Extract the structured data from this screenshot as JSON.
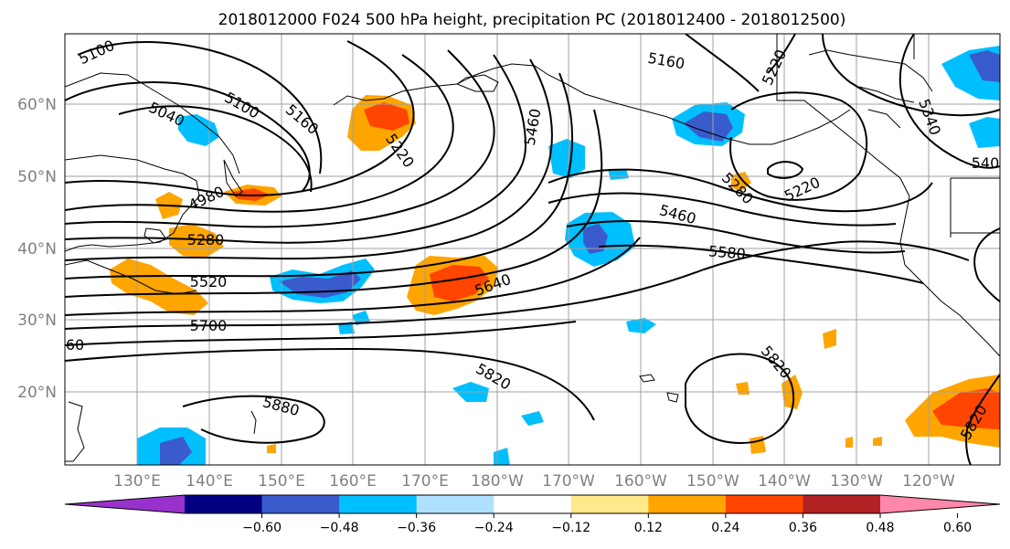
{
  "title": "2018012000 F024 500 hPa height, precipitation PC (2018012400 - 2018012500)",
  "map": {
    "lon_labels": [
      "130°E",
      "140°E",
      "150°E",
      "160°E",
      "170°E",
      "180°W",
      "170°W",
      "160°W",
      "150°W",
      "140°W",
      "130°W",
      "120°W"
    ],
    "lat_labels": [
      "60°N",
      "50°N",
      "40°N",
      "30°N",
      "20°N"
    ],
    "grid": true,
    "contour_labels": [
      "5100",
      "5040",
      "5100",
      "5160",
      "5220",
      "4980",
      "5280",
      "5520",
      "5700",
      "60",
      "5880",
      "5820",
      "5460",
      "5160",
      "5640",
      "5460",
      "5580",
      "5220",
      "5280",
      "5220",
      "5340",
      "540",
      "5820",
      "5820"
    ]
  },
  "colorbar": {
    "tick_labels": [
      "−0.60",
      "−0.48",
      "−0.36",
      "−0.24",
      "−0.12",
      "0.12",
      "0.24",
      "0.36",
      "0.48",
      "0.60"
    ],
    "colors": [
      "#9932cc",
      "#000080",
      "#3a5bcc",
      "#00bfff",
      "#b0e0ff",
      "#ffffff",
      "#ffe98a",
      "#ffa500",
      "#ff4500",
      "#b22222",
      "#ff88aa"
    ]
  },
  "colors": {
    "grid": "#a0a0a0",
    "contour": "#000000",
    "coast": "#000000"
  }
}
